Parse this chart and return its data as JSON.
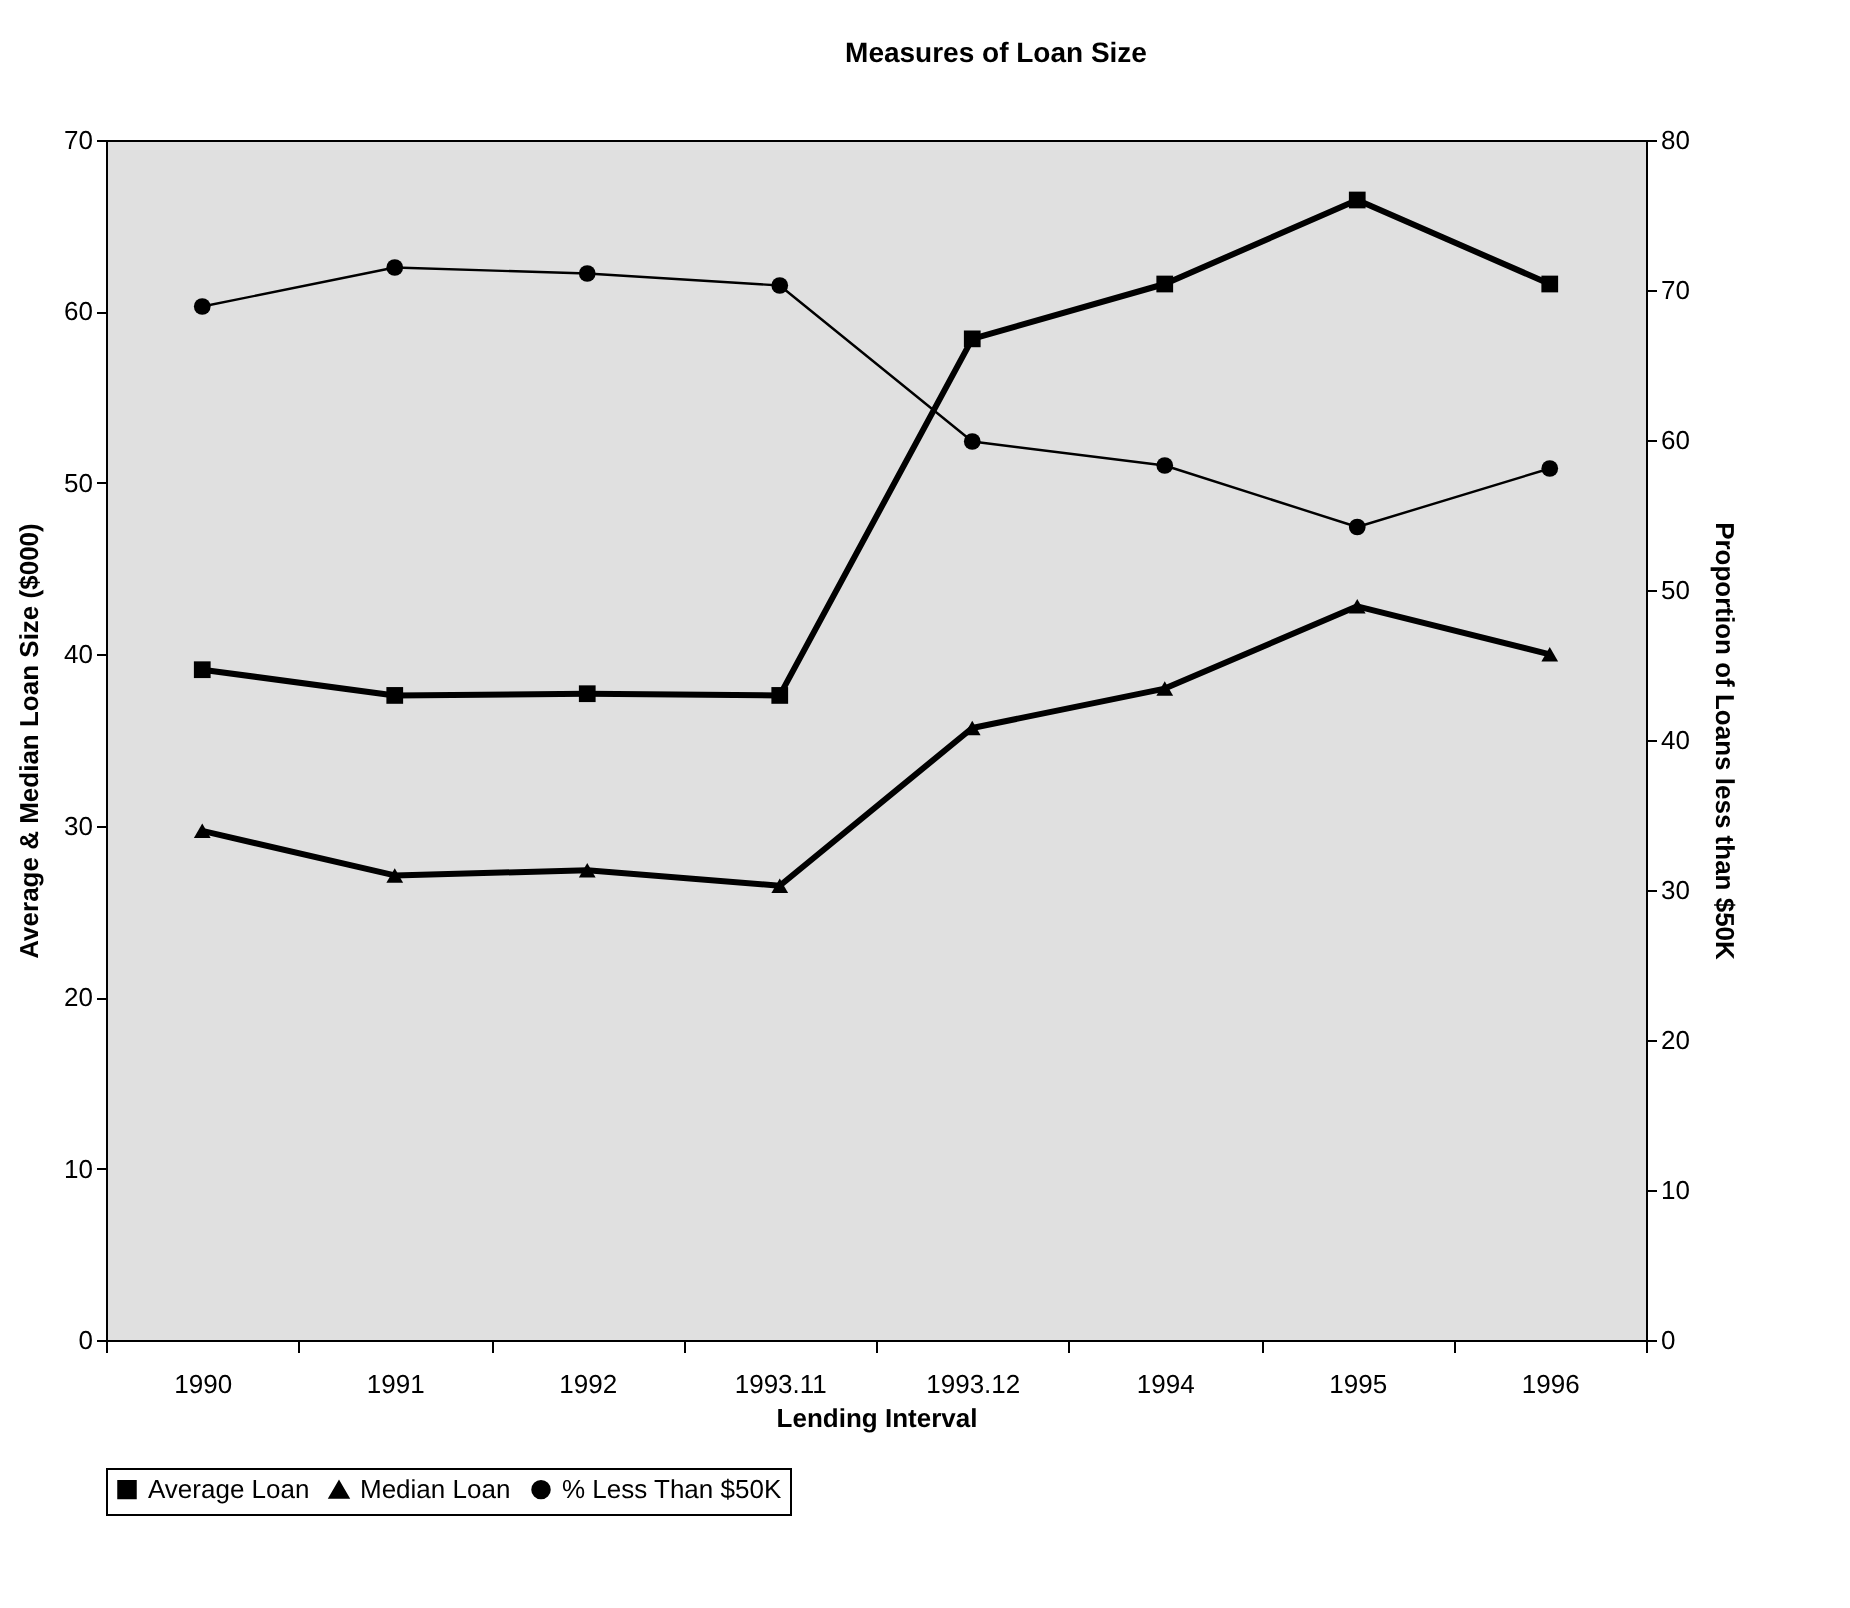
{
  "chart_data": {
    "type": "line",
    "title": "Measures of Loan Size",
    "xlabel": "Lending Interval",
    "ylabel": "Average & Median Loan Size ($000)",
    "y2label": "Proportion of Loans less than $50K",
    "categories": [
      "1990",
      "1991",
      "1992",
      "1993.11",
      "1993.12",
      "1994",
      "1995",
      "1996"
    ],
    "series": [
      {
        "name": "Average Loan",
        "color": "#000000",
        "marker": "square",
        "values": [
          39.1,
          37.6,
          37.7,
          37.6,
          58.4,
          61.6,
          66.5,
          61.6
        ]
      },
      {
        "name": "Median Loan",
        "color": "#000000",
        "marker": "triangle",
        "values": [
          29.7,
          27.1,
          27.4,
          26.5,
          35.7,
          38.0,
          42.8,
          40.0
        ]
      },
      {
        "name": "% Less Than $50K",
        "color": "#000000",
        "marker": "circle",
        "axis": "y2",
        "values": [
          68.9,
          71.5,
          71.1,
          70.3,
          59.9,
          58.3,
          54.2,
          58.1
        ]
      }
    ],
    "ylim": [
      0,
      70
    ],
    "yticks": [
      0,
      10,
      20,
      30,
      40,
      50,
      60,
      70
    ],
    "y2lim": [
      0,
      80
    ],
    "y2ticks": [
      0,
      10,
      20,
      30,
      40,
      50,
      60,
      70,
      80
    ],
    "grid": false,
    "legend": "bottom",
    "line_style": "solid"
  }
}
